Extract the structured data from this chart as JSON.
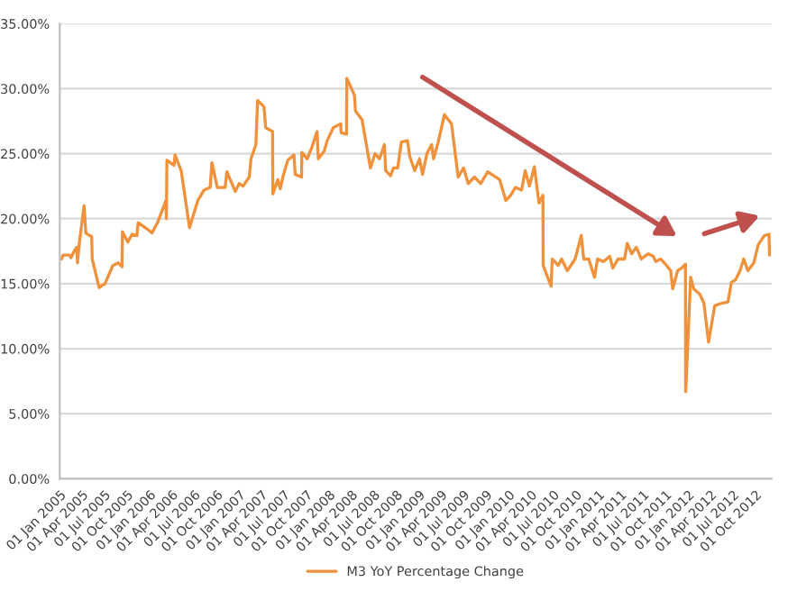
{
  "chart_data": {
    "type": "line",
    "grid": "y",
    "legend": "bottom",
    "xlim": [
      "2005-01-01",
      "2012-12-06"
    ],
    "xticks": [
      {
        "value": "2005-01-01",
        "label": "01 Jan 2005"
      },
      {
        "value": "2005-04-01",
        "label": "01 Apr 2005"
      },
      {
        "value": "2005-07-01",
        "label": "01 Jul 2005"
      },
      {
        "value": "2005-10-01",
        "label": "01 Oct 2005"
      },
      {
        "value": "2006-01-01",
        "label": "01 Jan 2006"
      },
      {
        "value": "2006-04-01",
        "label": "01 Apr 2006"
      },
      {
        "value": "2006-07-01",
        "label": "01 Jul 2006"
      },
      {
        "value": "2006-10-01",
        "label": "01 Oct 2006"
      },
      {
        "value": "2007-01-01",
        "label": "01 Jan 2007"
      },
      {
        "value": "2007-04-01",
        "label": "01 Apr 2007"
      },
      {
        "value": "2007-07-01",
        "label": "01 Jul 2007"
      },
      {
        "value": "2007-10-01",
        "label": "01 Oct 2007"
      },
      {
        "value": "2008-01-01",
        "label": "01 Jan 2008"
      },
      {
        "value": "2008-04-01",
        "label": "01 Apr 2008"
      },
      {
        "value": "2008-07-01",
        "label": "01 Jul 2008"
      },
      {
        "value": "2008-10-01",
        "label": "01 Oct 2008"
      },
      {
        "value": "2009-01-01",
        "label": "01 Jan 2009"
      },
      {
        "value": "2009-04-01",
        "label": "01 Apr 2009"
      },
      {
        "value": "2009-07-01",
        "label": "01 Jul 2009"
      },
      {
        "value": "2009-10-01",
        "label": "01 Oct 2009"
      },
      {
        "value": "2010-01-01",
        "label": "01 Jan 2010"
      },
      {
        "value": "2010-04-01",
        "label": "01 Apr 2010"
      },
      {
        "value": "2010-07-01",
        "label": "01 Jul 2010"
      },
      {
        "value": "2010-10-01",
        "label": "01 Oct 2010"
      },
      {
        "value": "2011-01-01",
        "label": "01 Jan 2011"
      },
      {
        "value": "2011-04-01",
        "label": "01 Apr 2011"
      },
      {
        "value": "2011-07-01",
        "label": "01 Jul 2011"
      },
      {
        "value": "2011-10-01",
        "label": "01 Oct 2011"
      },
      {
        "value": "2012-01-01",
        "label": "01 Jan 2012"
      },
      {
        "value": "2012-04-01",
        "label": "01 Apr 2012"
      },
      {
        "value": "2012-07-01",
        "label": "01 Jul 2012"
      },
      {
        "value": "2012-10-01",
        "label": "01 Oct 2012"
      }
    ],
    "ylim": [
      0,
      35
    ],
    "yticks": [
      {
        "value": 0,
        "label": "0.00%"
      },
      {
        "value": 5,
        "label": "5.00%"
      },
      {
        "value": 10,
        "label": "10.00%"
      },
      {
        "value": 15,
        "label": "15.00%"
      },
      {
        "value": 20,
        "label": "20.00%"
      },
      {
        "value": 25,
        "label": "25.00%"
      },
      {
        "value": 30,
        "label": "30.00%"
      },
      {
        "value": 35,
        "label": "35.00%"
      }
    ],
    "series": [
      {
        "name": "M3 YoY Percentage Change",
        "color": "#f0913c",
        "x": [
          "2005-01-08",
          "2005-01-15",
          "2005-02-09",
          "2005-02-16",
          "2005-02-26",
          "2005-03-11",
          "2005-03-14",
          "2005-03-22",
          "2005-04-10",
          "2005-04-17",
          "2005-05-11",
          "2005-05-13",
          "2005-06-10",
          "2005-07-04",
          "2005-08-05",
          "2005-08-27",
          "2005-09-11",
          "2005-09-13",
          "2005-10-05",
          "2005-10-22",
          "2005-11-11",
          "2005-11-16",
          "2005-12-30",
          "2006-01-11",
          "2006-02-03",
          "2006-02-27",
          "2006-03-09",
          "2006-03-11",
          "2006-03-13",
          "2006-04-11",
          "2006-04-15",
          "2006-05-10",
          "2006-06-13",
          "2006-07-17",
          "2006-08-11",
          "2006-09-05",
          "2006-09-12",
          "2006-10-04",
          "2006-11-05",
          "2006-11-12",
          "2006-12-16",
          "2007-01-01",
          "2007-01-17",
          "2007-02-11",
          "2007-02-18",
          "2007-03-10",
          "2007-03-17",
          "2007-04-12",
          "2007-04-19",
          "2007-05-17",
          "2007-05-18",
          "2007-06-07",
          "2007-06-17",
          "2007-06-29",
          "2007-07-18",
          "2007-08-12",
          "2007-08-17",
          "2007-09-12",
          "2007-09-13",
          "2007-10-05",
          "2007-10-24",
          "2007-11-14",
          "2007-11-19",
          "2007-12-13",
          "2007-12-25",
          "2008-01-19",
          "2008-02-18",
          "2008-02-20",
          "2008-03-13",
          "2008-03-14",
          "2008-04-14",
          "2008-04-18",
          "2008-05-15",
          "2008-06-18",
          "2008-07-07",
          "2008-07-25",
          "2008-08-14",
          "2008-08-19",
          "2008-09-08",
          "2008-09-20",
          "2008-10-07",
          "2008-10-22",
          "2008-11-16",
          "2008-11-25",
          "2008-12-15",
          "2009-01-04",
          "2009-01-16",
          "2009-02-03",
          "2009-02-22",
          "2009-03-02",
          "2009-03-21",
          "2009-04-15",
          "2009-05-14",
          "2009-06-10",
          "2009-07-02",
          "2009-07-21",
          "2009-08-15",
          "2009-09-10",
          "2009-10-08",
          "2009-11-02",
          "2009-11-26",
          "2009-12-21",
          "2010-01-10",
          "2010-01-29",
          "2010-02-23",
          "2010-03-10",
          "2010-03-27",
          "2010-04-16",
          "2010-05-05",
          "2010-05-21",
          "2010-05-22",
          "2010-06-23",
          "2010-06-28",
          "2010-07-22",
          "2010-08-05",
          "2010-08-28",
          "2010-09-29",
          "2010-10-24",
          "2010-11-03",
          "2010-11-23",
          "2010-12-17",
          "2010-12-29",
          "2011-01-23",
          "2011-02-17",
          "2011-03-01",
          "2011-03-23",
          "2011-04-18",
          "2011-04-29",
          "2011-05-17",
          "2011-06-05",
          "2011-06-25",
          "2011-07-24",
          "2011-08-13",
          "2011-08-23",
          "2011-09-12",
          "2011-10-06",
          "2011-10-23",
          "2011-10-31",
          "2011-11-20",
          "2011-12-06",
          "2011-12-22",
          "2011-12-23",
          "2012-01-12",
          "2012-01-25",
          "2012-02-18",
          "2012-03-06",
          "2012-03-25",
          "2012-04-19",
          "2012-05-18",
          "2012-06-12",
          "2012-06-26",
          "2012-07-13",
          "2012-07-31",
          "2012-08-15",
          "2012-09-01",
          "2012-09-25",
          "2012-10-13",
          "2012-11-07",
          "2012-11-26",
          "2012-11-28"
        ],
        "values": [
          16.9,
          17.2,
          17.2,
          17.0,
          17.4,
          17.8,
          16.6,
          18.2,
          21.0,
          18.9,
          18.6,
          16.9,
          14.7,
          15.0,
          16.4,
          16.6,
          16.3,
          19.0,
          18.2,
          18.8,
          18.7,
          19.7,
          19.1,
          18.9,
          19.7,
          20.9,
          21.4,
          20.0,
          24.5,
          24.1,
          24.9,
          23.7,
          19.3,
          21.4,
          22.2,
          22.4,
          24.3,
          22.4,
          22.4,
          23.6,
          22.1,
          22.7,
          22.5,
          23.2,
          24.6,
          25.7,
          29.1,
          28.6,
          27.0,
          26.7,
          21.9,
          23.0,
          22.3,
          23.3,
          24.5,
          24.9,
          23.4,
          23.2,
          25.1,
          24.6,
          25.5,
          26.7,
          24.6,
          25.2,
          26.0,
          27.0,
          27.3,
          26.6,
          26.5,
          30.8,
          29.5,
          28.3,
          27.6,
          23.9,
          25.0,
          24.6,
          25.7,
          23.7,
          23.3,
          23.9,
          23.9,
          25.9,
          26.0,
          24.8,
          23.7,
          24.6,
          23.4,
          25.0,
          25.7,
          24.6,
          25.9,
          28.0,
          27.3,
          23.2,
          23.9,
          22.7,
          23.2,
          22.7,
          23.6,
          23.3,
          23.0,
          21.4,
          21.8,
          22.4,
          22.2,
          23.7,
          22.5,
          24.0,
          21.2,
          21.8,
          16.4,
          14.8,
          16.9,
          16.4,
          16.9,
          16.0,
          16.9,
          18.7,
          16.9,
          16.9,
          15.5,
          16.9,
          16.7,
          17.1,
          16.2,
          16.9,
          16.9,
          18.1,
          17.3,
          17.8,
          16.9,
          17.3,
          17.1,
          16.7,
          16.9,
          16.4,
          16.0,
          14.6,
          16.0,
          16.2,
          16.5,
          6.7,
          15.5,
          14.6,
          14.2,
          13.5,
          10.5,
          13.3,
          13.5,
          13.6,
          15.1,
          15.3,
          16.0,
          16.9,
          16.0,
          16.6,
          18.0,
          18.7,
          18.8,
          17.2
        ]
      }
    ]
  }
}
